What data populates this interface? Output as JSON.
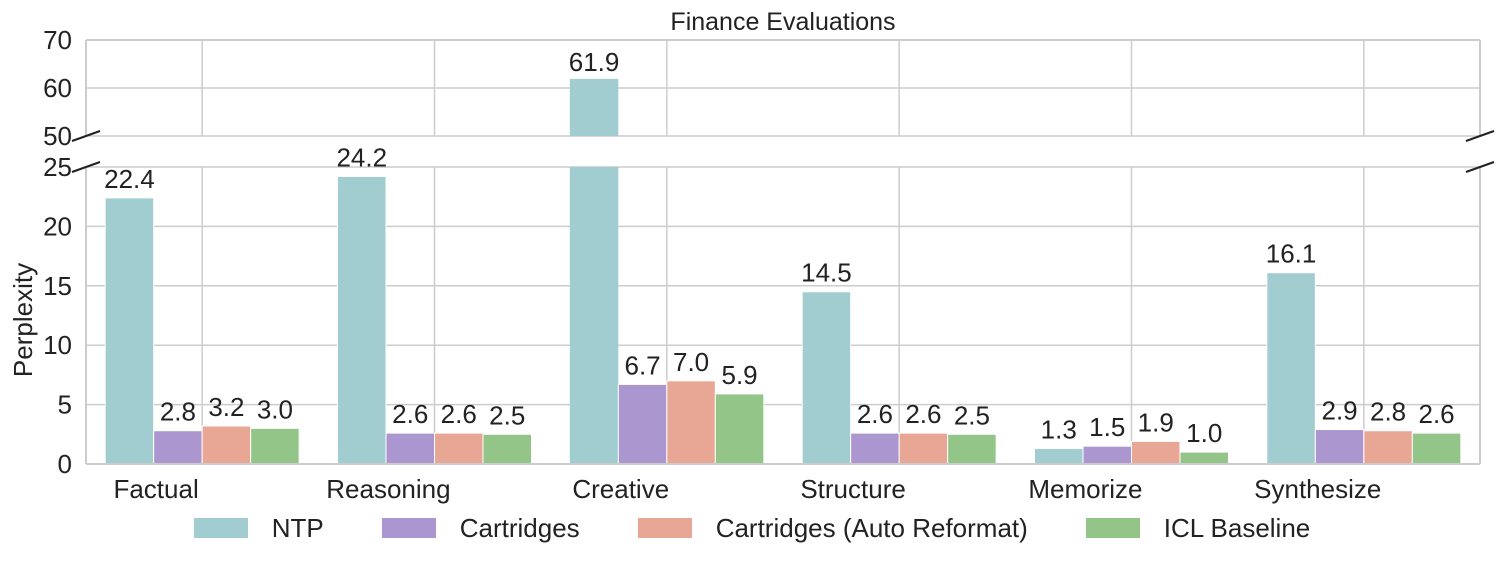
{
  "chart_data": {
    "type": "bar",
    "title": "Finance Evaluations",
    "xlabel": "",
    "ylabel": "Perplexity",
    "categories": [
      "Factual",
      "Reasoning",
      "Creative",
      "Structure",
      "Memorize",
      "Synthesize"
    ],
    "series": [
      {
        "name": "NTP",
        "color": "#a1cdd0",
        "values": [
          22.4,
          24.2,
          61.9,
          14.5,
          1.3,
          16.1
        ]
      },
      {
        "name": "Cartridges",
        "color": "#ab96cf",
        "values": [
          2.8,
          2.6,
          6.7,
          2.6,
          1.5,
          2.9
        ]
      },
      {
        "name": "Cartridges (Auto Reformat)",
        "color": "#e8a794",
        "values": [
          3.2,
          2.6,
          7.0,
          2.6,
          1.9,
          2.8
        ]
      },
      {
        "name": "ICL Baseline",
        "color": "#93c488",
        "values": [
          3.0,
          2.5,
          5.9,
          2.5,
          1.0,
          2.6
        ]
      }
    ],
    "value_labels": [
      [
        "22.4",
        "24.2",
        "61.9",
        "14.5",
        "1.3",
        "16.1"
      ],
      [
        "2.8",
        "2.6",
        "6.7",
        "2.6",
        "1.5",
        "2.9"
      ],
      [
        "3.2",
        "2.6",
        "7.0",
        "2.6",
        "1.9",
        "2.8"
      ],
      [
        "3.0",
        "2.5",
        "5.9",
        "2.5",
        "1.0",
        "2.6"
      ]
    ],
    "broken_axis": {
      "upper": {
        "ylim": [
          50,
          70
        ],
        "ticks": [
          "50",
          "60",
          "70"
        ]
      },
      "lower": {
        "ylim": [
          0,
          25
        ],
        "ticks": [
          "0",
          "5",
          "10",
          "15",
          "20",
          "25"
        ]
      }
    },
    "grid": true,
    "legend_position": "bottom"
  }
}
